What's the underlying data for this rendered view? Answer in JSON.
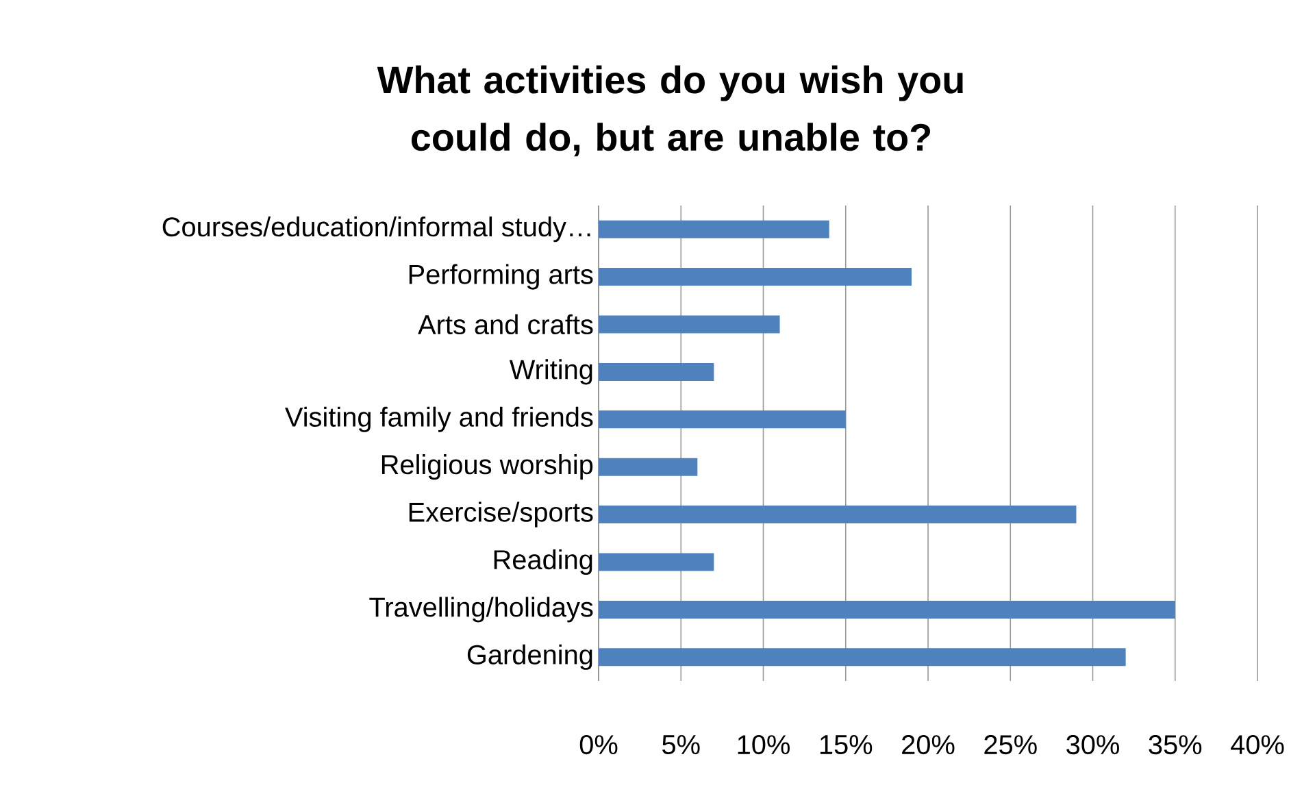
{
  "chart_data": {
    "type": "bar",
    "orientation": "horizontal",
    "title": "What activities do you wish you could do, but are unable to?",
    "categories": [
      "Courses/education/informal study…",
      "Performing arts",
      "Arts and crafts",
      "Writing",
      "Visiting family and friends",
      "Religious worship",
      "Exercise/sports",
      "Reading",
      "Travelling/holidays",
      "Gardening"
    ],
    "values": [
      14,
      19,
      11,
      7,
      15,
      6,
      29,
      7,
      35,
      32
    ],
    "color": "#4f81bd",
    "xlim": [
      0,
      40
    ],
    "xticks": [
      {
        "value": 0,
        "label": "0%"
      },
      {
        "value": 5,
        "label": "5%"
      },
      {
        "value": 10,
        "label": "10%"
      },
      {
        "value": 15,
        "label": "15%"
      },
      {
        "value": 20,
        "label": "20%"
      },
      {
        "value": 25,
        "label": "25%"
      },
      {
        "value": 30,
        "label": "30%"
      },
      {
        "value": 35,
        "label": "35%"
      },
      {
        "value": 40,
        "label": "40%"
      }
    ],
    "grid": "x"
  }
}
